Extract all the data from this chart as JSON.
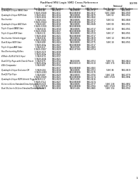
{
  "title": "RadHard MSI Logic SMD Cross Reference",
  "page": "1/2/99",
  "bg_color": "#ffffff",
  "text_color": "#000000",
  "col_group_labels": [
    "LF Int",
    "Burr",
    "National"
  ],
  "col_headers": [
    "Description",
    "Part Number",
    "SMD Number",
    "Part Number",
    "SMD Number",
    "Part Number",
    "SMD Number"
  ],
  "row_pairs": [
    {
      "desc": "Quadruple 2-Input NAND Gate",
      "r1": [
        "5 962H-88",
        "5962-8611",
        "5962/88065",
        "5962-0711",
        "54HC 88",
        "5962-8761"
      ],
      "r2": [
        "5 962H-19048",
        "5962-8611",
        "5962/88065B",
        "5962-8617",
        "54HC 1048",
        "5962-8769"
      ]
    },
    {
      "desc": "Quadruple 2-Input NOR Gate",
      "r1": [
        "5 962H-2642",
        "5962-8614",
        "5962/88068",
        "5962-8679",
        "54HC 02",
        "5962-8762"
      ],
      "r2": [
        "5 962H-26G2",
        "5962-8614",
        "5962/88068B",
        "5962-8842",
        "",
        ""
      ]
    },
    {
      "desc": "Hex Inverter",
      "r1": [
        "5 962H-384",
        "5962-8616",
        "5962/88065",
        "5962-8717",
        "54HC 04",
        "5962-8568"
      ],
      "r2": [
        "5 962H-19044",
        "5962-8617",
        "5962/88046B",
        "5962-8717",
        "",
        ""
      ]
    },
    {
      "desc": "Quadruple 2-Input AND Gate",
      "r1": [
        "5 962H-369",
        "5962-8618",
        "5962/88065",
        "5962-8048",
        "54HC 08",
        "5962-8761"
      ],
      "r2": [
        "5 962H-31508",
        "5962-8621",
        "5962/88068B",
        "",
        "",
        ""
      ]
    },
    {
      "desc": "Triple 3-Input NAND Gate",
      "r1": [
        "5 962H-818",
        "5962-8818",
        "5962/88065",
        "5962-8717",
        "54HC 10",
        "5962-8761"
      ],
      "r2": [
        "5 962H-19041",
        "5962-8617",
        "5962/88068B",
        "5962-8617",
        "",
        ""
      ]
    },
    {
      "desc": "Triple 3-Input NOR Gate",
      "r1": [
        "5 962H-311",
        "5962-8822",
        "5962/88065",
        "5962-8720",
        "54HC 27",
        "5962-8761"
      ],
      "r2": [
        "5 962H-26G2",
        "5962-8621",
        "5962/88068B",
        "5962-8717",
        "",
        ""
      ]
    },
    {
      "desc": "Hex Inverter Schmitt-trigger",
      "r1": [
        "5 962H-816",
        "5962-8826",
        "5962/88045",
        "5962-8819",
        "54HC 14",
        "5962-8756"
      ],
      "r2": [
        "5 962H-19041",
        "5962-8827",
        "5962/88048B",
        "5962-8719",
        "",
        ""
      ]
    },
    {
      "desc": "Dual 4-Input NOR Gate",
      "r1": [
        "5 962H-808",
        "5962-8824",
        "5962/88065",
        "5962-8775",
        "54HC 28",
        "5962-8761"
      ],
      "r2": [
        "5 962H-26Ga",
        "5962-8827",
        "5962/88068B",
        "5962-8717",
        "",
        ""
      ]
    },
    {
      "desc": "Triple 3-Input AND Gate",
      "r1": [
        "5 962H-817",
        "5962-8828",
        "5962/87065",
        "5962-8560",
        "",
        ""
      ],
      "r2": [
        "5 962H-19027",
        "5962-8628",
        "5962/187068",
        "5962-8754",
        "",
        ""
      ]
    },
    {
      "desc": "Hex Noninverting Buffers",
      "r1": [
        "5 962H-3519",
        "5962-8638",
        "",
        "",
        "",
        ""
      ],
      "r2": [
        "5 962H-26Ga",
        "5962-8641",
        "",
        "",
        "",
        ""
      ]
    },
    {
      "desc": "4-Wide, 4-2/4-2/3-4-2-Input",
      "r1": [
        "5 962H-874",
        "5962-8917",
        "",
        "",
        "",
        ""
      ],
      "r2": [
        "5 962H-26G4",
        "5962-8621",
        "",
        "",
        "",
        ""
      ]
    },
    {
      "desc": "Dual D-Flip-Flops with Clear & Preset",
      "r1": [
        "5 962H-875",
        "5962-8914",
        "5962/81065",
        "5962-8753",
        "54HC 74",
        "5962-8824"
      ],
      "r2": [
        "5 962H-26Ga",
        "5962-8617",
        "5962/810110",
        "5962-8110",
        "54HC 374",
        "5962-8624"
      ]
    },
    {
      "desc": "4-Bit Comparator",
      "r1": [
        "5 962H-887",
        "5962-8914",
        "",
        "",
        "",
        ""
      ],
      "r2": [
        "",
        "5962-8617",
        "5962/88068B",
        "5962-8563",
        "",
        ""
      ]
    },
    {
      "desc": "Quadruple 2-Input Exclusive OR",
      "r1": [
        "5 962H-284",
        "5962-8618",
        "5962/88065",
        "5962-8753",
        "54HC 86",
        "5962-8819"
      ],
      "r2": [
        "5 962H-2/880",
        "5962-8619",
        "5962/88068B",
        "5962-8176",
        "",
        ""
      ]
    },
    {
      "desc": "Dual JK Flip-Flops",
      "r1": [
        "5 962H-887",
        "5962-8629",
        "5962/88090",
        "5962-8756",
        "54HC 109",
        "5962-8779"
      ],
      "r2": [
        "5 962H-19049",
        "5962-8621",
        "5962/88068B",
        "5962-8174",
        "54HC 374 B",
        "5962-8994"
      ]
    },
    {
      "desc": "Quadruple 2-Input NOR-Schmitt Triggers",
      "r1": [
        "5 962H-317",
        "5962-8620",
        "5962/51065",
        "5962-8416",
        "",
        ""
      ],
      "r2": [
        "5 962H-374-2",
        "5962-8627",
        "5962/88068B",
        "5962-8174",
        "",
        ""
      ]
    },
    {
      "desc": "8-Line to 4-Line Standard Demultiplexers",
      "r1": [
        "5 962H-8108",
        "5962-8604",
        "5962/88065",
        "5962-8777",
        "54HC 138",
        "5962-8892"
      ],
      "r2": [
        "5 962H-19075 B",
        "5962-8605",
        "5962/88068B",
        "5962-8764",
        "54HC 374 B",
        "5962-8774"
      ]
    },
    {
      "desc": "Dual 16-Line to 16-Line Standard Demultiplexers",
      "r1": [
        "5 962H-8119",
        "5962-8616",
        "5962/51465",
        "5962-8865",
        "54HC 154",
        "5962-8762"
      ],
      "r2": [
        "",
        "",
        "",
        "",
        "",
        ""
      ]
    }
  ]
}
